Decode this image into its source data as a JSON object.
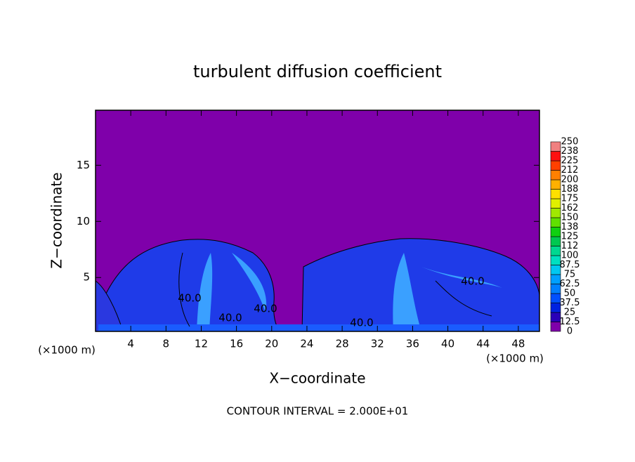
{
  "chart_data": {
    "type": "contour",
    "title": "turbulent diffusion coefficient",
    "xlabel": "X−coordinate",
    "ylabel": "Z−coordinate",
    "x_unit": "(×1000 m)",
    "y_unit": "(×1000 m)",
    "footer": "CONTOUR INTERVAL = 2.000E+01",
    "xlim": [
      0,
      50.4
    ],
    "xticks": [
      4,
      8,
      12,
      16,
      20,
      24,
      28,
      32,
      36,
      40,
      44,
      48
    ],
    "ylim": [
      0.2,
      19.9
    ],
    "yticks": [
      5,
      10,
      15
    ],
    "contour_labels": [
      "40.0",
      "40.0",
      "40.0",
      "40.0",
      "40.0"
    ],
    "colorbar": {
      "levels": [
        0,
        12.5,
        25,
        37.5,
        50,
        62.5,
        75,
        87.5,
        100,
        112,
        125,
        138,
        150,
        162,
        175,
        188,
        200,
        212,
        225,
        238,
        250
      ],
      "colors": [
        "#7f00aa",
        "#2a00b8",
        "#0022e0",
        "#0050ff",
        "#0080ff",
        "#00a0ff",
        "#00c8f0",
        "#00e0c0",
        "#00d890",
        "#00c850",
        "#10d010",
        "#60e000",
        "#a0e800",
        "#e0f000",
        "#ffe000",
        "#ffb000",
        "#ff8000",
        "#ff4000",
        "#ff1010",
        "#f08080"
      ]
    }
  }
}
